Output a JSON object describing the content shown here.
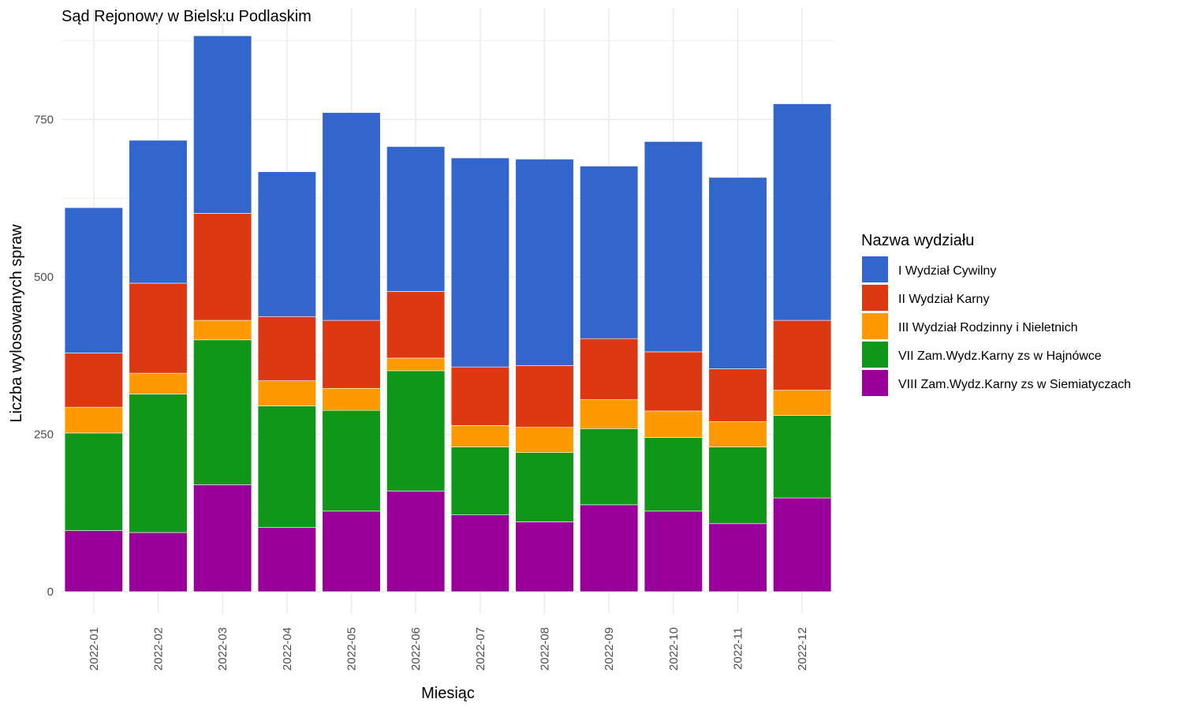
{
  "chart_data": {
    "type": "bar",
    "stacked": true,
    "title": "Sąd Rejonowy w Bielsku Podlaskim",
    "xlabel": "Miesiąc",
    "ylabel": "Liczba wylosowanych spraw",
    "ylim": [
      0,
      900
    ],
    "yticks": [
      0,
      250,
      500,
      750
    ],
    "grid": true,
    "legend_title": "Nazwa wydziału",
    "legend_position": "right",
    "categories": [
      "2022-01",
      "2022-02",
      "2022-03",
      "2022-04",
      "2022-05",
      "2022-06",
      "2022-07",
      "2022-08",
      "2022-09",
      "2022-10",
      "2022-11",
      "2022-12"
    ],
    "series": [
      {
        "name": "VIII Zam.Wydz.Karny zs w Siemiatyczach",
        "color": "#990099",
        "values": [
          97,
          94,
          170,
          102,
          128,
          160,
          122,
          111,
          138,
          128,
          108,
          149
        ]
      },
      {
        "name": "VII Zam.Wydz.Karny zs w Hajnówce",
        "color": "#109618",
        "values": [
          155,
          220,
          230,
          193,
          160,
          191,
          108,
          110,
          121,
          117,
          122,
          131
        ]
      },
      {
        "name": "III Wydział Rodzinny i Nieletnich",
        "color": "#FF9900",
        "values": [
          41,
          33,
          31,
          40,
          35,
          20,
          34,
          40,
          46,
          42,
          40,
          40
        ]
      },
      {
        "name": "II Wydział Karny",
        "color": "#DC3912",
        "values": [
          86,
          143,
          170,
          102,
          108,
          106,
          93,
          98,
          97,
          94,
          84,
          111
        ]
      },
      {
        "name": "I Wydział Cywilny",
        "color": "#3366CC",
        "values": [
          231,
          227,
          282,
          230,
          330,
          230,
          332,
          328,
          274,
          334,
          304,
          344
        ]
      }
    ]
  }
}
